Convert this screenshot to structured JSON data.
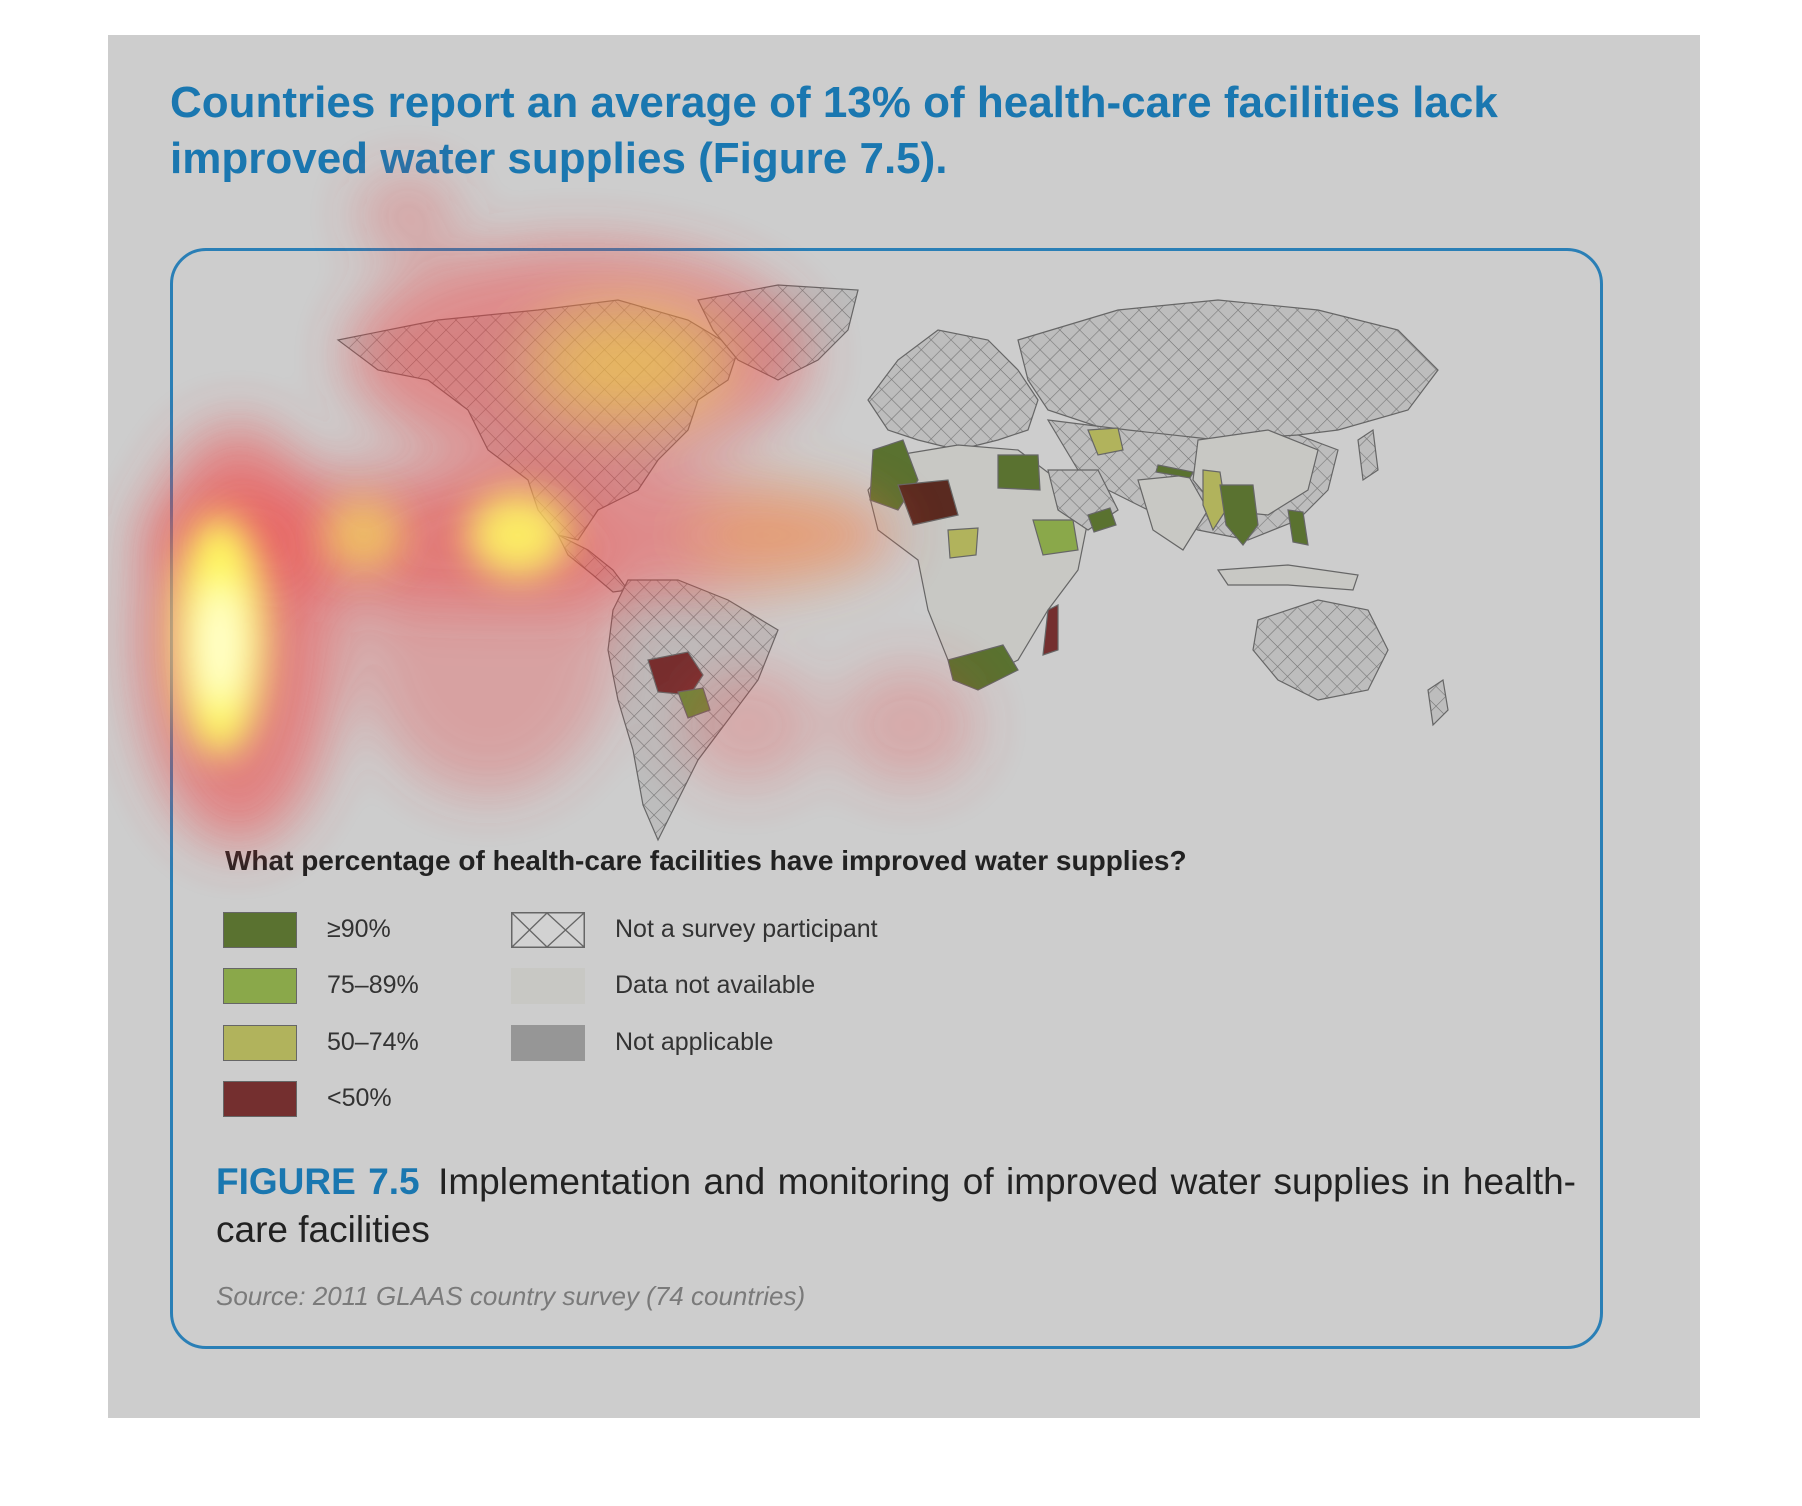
{
  "headline": "Countries report an average of 13% of health-care facilities lack improved water supplies (Figure 7.5).",
  "legend": {
    "title": "What percentage of health-care facilities have improved water supplies?",
    "items": [
      {
        "label": "≥90%",
        "color": "#5a7230"
      },
      {
        "label": "75–89%",
        "color": "#8aa84a"
      },
      {
        "label": "50–74%",
        "color": "#b1b35c"
      },
      {
        "label": "<50%",
        "color": "#742f2f"
      },
      {
        "label": "Not a survey participant",
        "color": "hatch"
      },
      {
        "label": "Data not available",
        "color": "#c8c8c4"
      },
      {
        "label": "Not applicable",
        "color": "#969696"
      }
    ]
  },
  "caption": {
    "figure_label": "FIGURE 7.5",
    "text": "Implementation and monitoring of improved water supplies in health-care facilities"
  },
  "source": "Source: 2011 GLAAS country survey (74 countries)",
  "colors": {
    "accent": "#1a77b0",
    "ge90": "#5a7230",
    "p75_89": "#8aa84a",
    "p50_74": "#b1b35c",
    "lt50": "#742f2f",
    "not_participant": "#b9b9b9",
    "no_data": "#c8c8c4",
    "not_applicable": "#969696"
  }
}
